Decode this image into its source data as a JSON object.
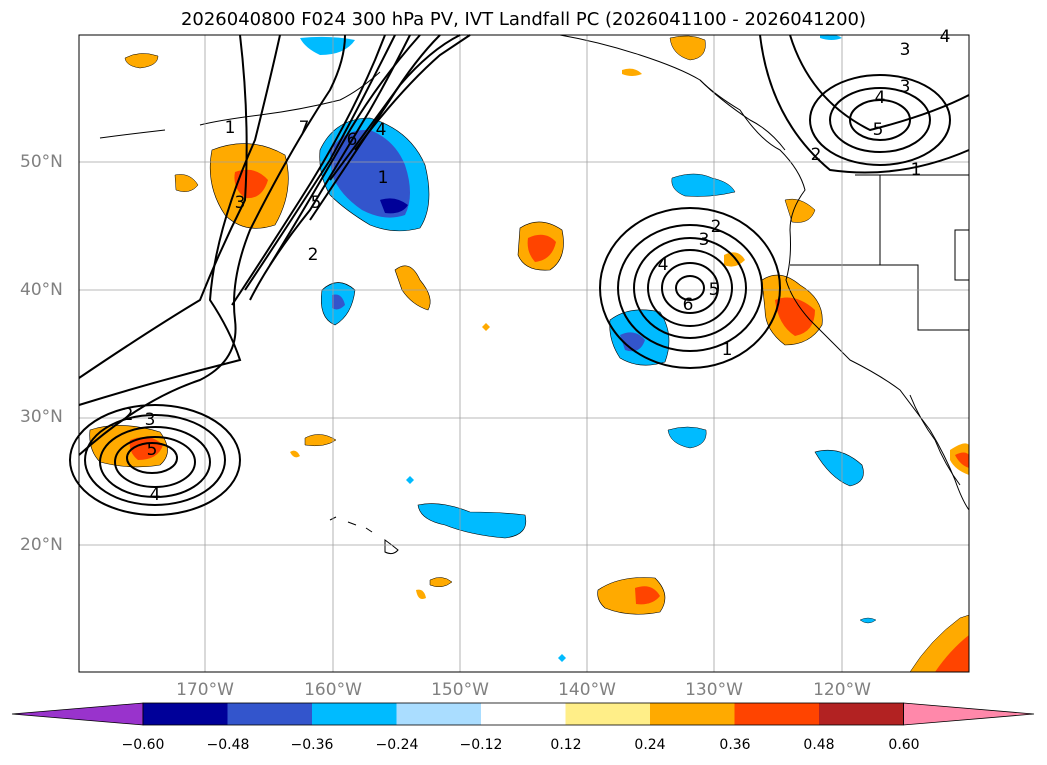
{
  "title": "2026040800 F024 300 hPa PV, IVT Landfall PC (2026041100 - 2026041200)",
  "map": {
    "lat_labels": [
      "50°N",
      "40°N",
      "30°N",
      "20°N"
    ],
    "lon_labels": [
      "170°W",
      "160°W",
      "150°W",
      "140°W",
      "130°W",
      "120°W"
    ],
    "extent": {
      "lon_min": -180,
      "lon_max": -110,
      "lat_min": 10,
      "lat_max": 60
    },
    "contour_labels": [
      "1",
      "2",
      "3",
      "5",
      "6",
      "4",
      "1",
      "2",
      "4",
      "5",
      "6",
      "1",
      "2",
      "3",
      "5",
      "4",
      "3",
      "4",
      "5",
      "2",
      "3",
      "7",
      "1",
      "3",
      "4"
    ],
    "fill_colors": {
      "neg_060": "#9933cc",
      "neg_048": "#000099",
      "neg_036": "#3355cc",
      "neg_024": "#00bbff",
      "neg_012": "#aaddff",
      "pos_012": "#ffee88",
      "pos_024": "#ffaa00",
      "pos_036": "#ff4400",
      "pos_048": "#b22222",
      "pos_060": "#ff88aa"
    }
  },
  "colorbar": {
    "labels": [
      "−0.60",
      "−0.48",
      "−0.36",
      "−0.24",
      "−0.12",
      "0.12",
      "0.24",
      "0.36",
      "0.48",
      "0.60"
    ],
    "colors": [
      "#9933cc",
      "#000099",
      "#3355cc",
      "#00bbff",
      "#aaddff",
      "#ffffff",
      "#ffee88",
      "#ffaa00",
      "#ff4400",
      "#b22222",
      "#ff88aa"
    ]
  }
}
